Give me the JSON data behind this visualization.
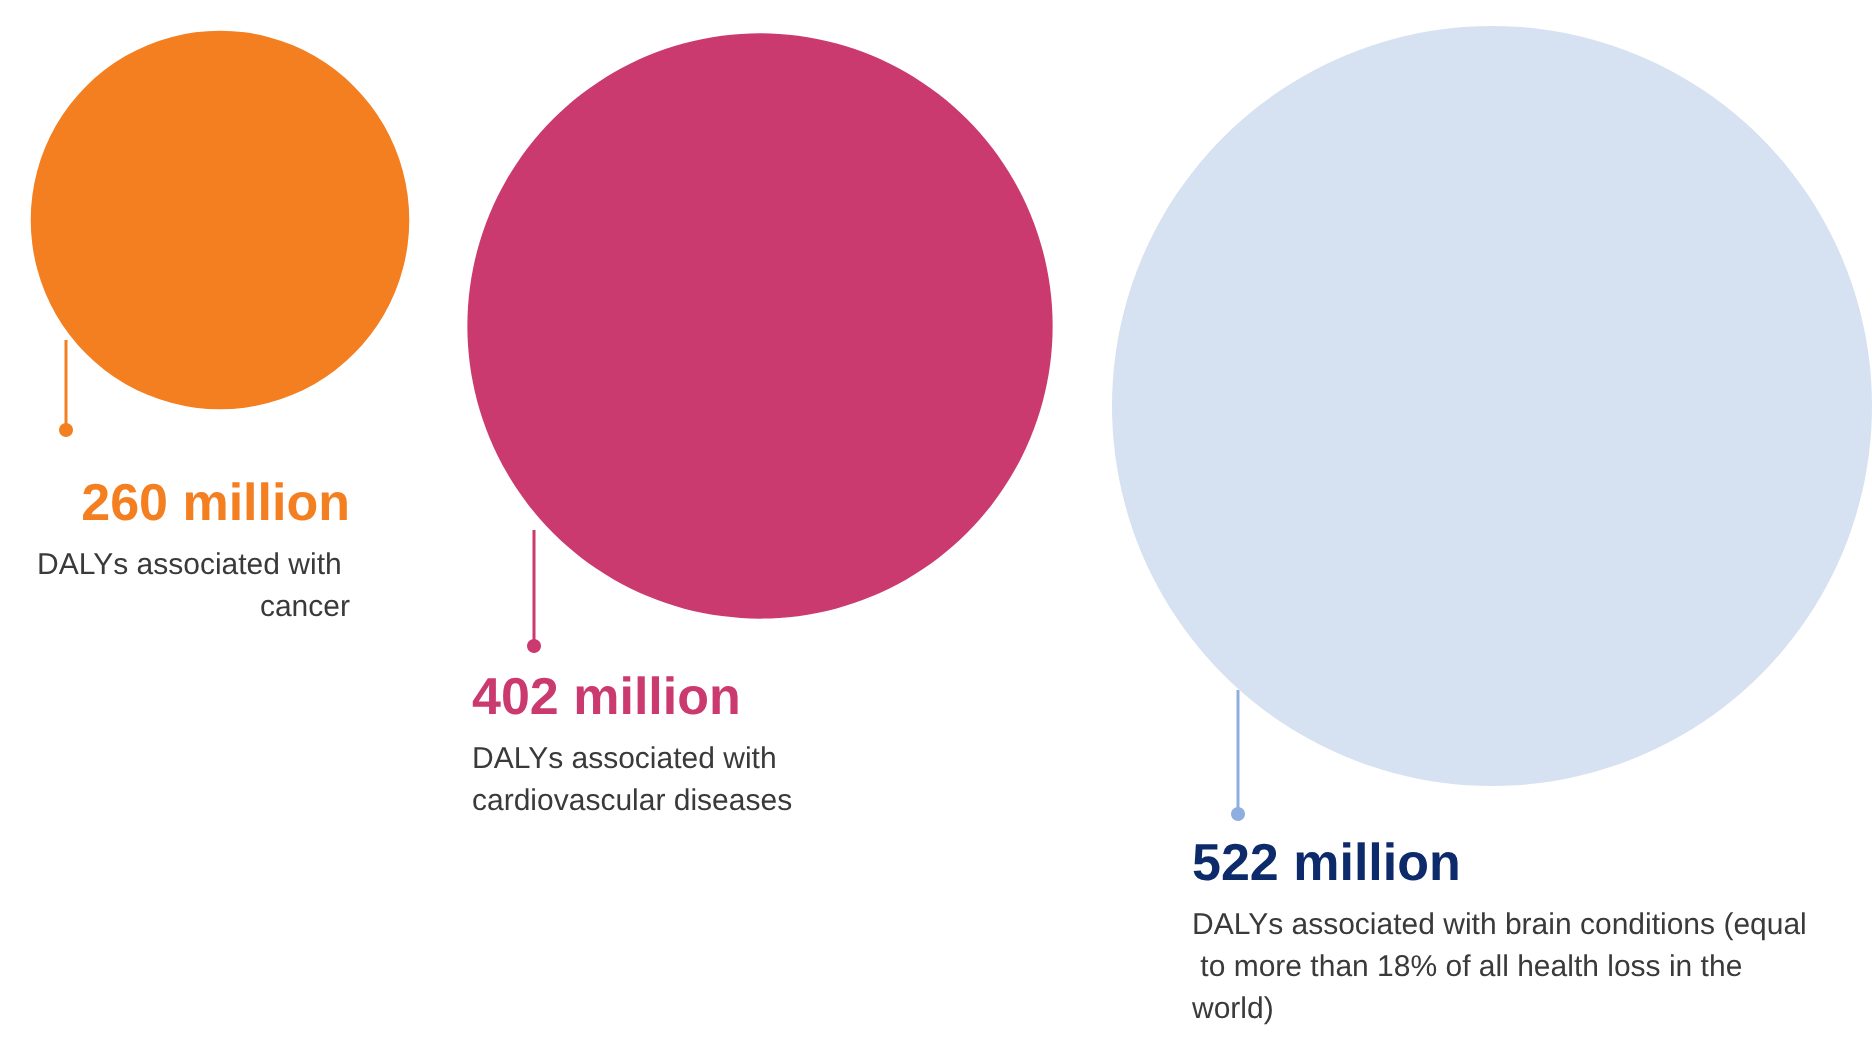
{
  "chart_data": {
    "type": "other",
    "categories": [
      "DALYs associated with cancer",
      "DALYs associated with cardiovascular diseases",
      "DALYs associated with brain conditions (equal to more than 18% of all health loss in the world)"
    ],
    "values": [
      260,
      402,
      522
    ],
    "value_labels": [
      "260 million",
      "402 million",
      "522 million"
    ],
    "colors": [
      "#f47f20",
      "#cb3a6f",
      "#d6e1f1"
    ]
  }
}
